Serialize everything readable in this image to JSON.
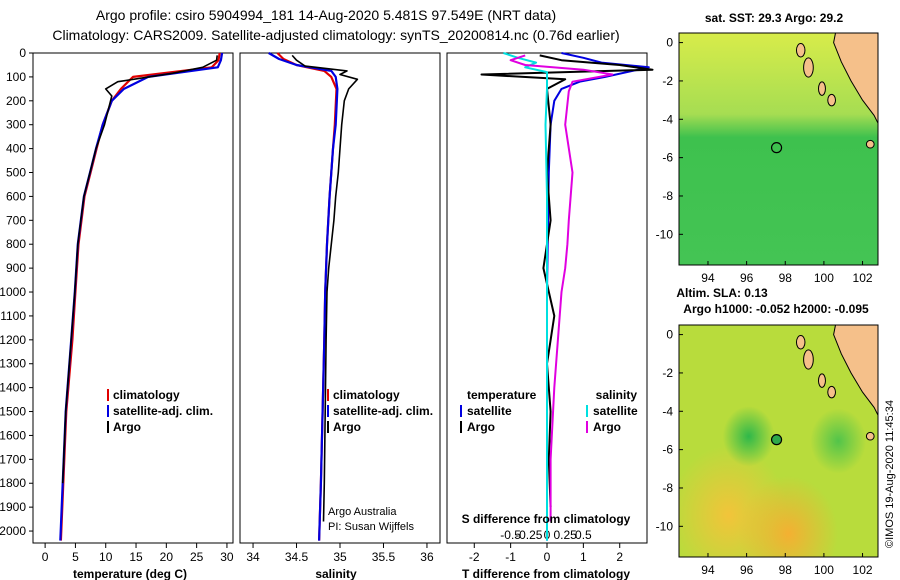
{
  "titles": {
    "line1": "Argo profile: csiro 5904994_181 14-Aug-2020 5.481S 97.549E (NRT data)",
    "line2": "Climatology: CARS2009. Satellite-adjusted climatology: synTS_20200814.nc (0.76d earlier)"
  },
  "colors": {
    "climatology": "#e00000",
    "satellite_adj": "#0000e0",
    "argo": "#000000",
    "satellite_diff_t": "#0000e0",
    "satellite_diff_s": "#00e0e0",
    "argo_diff_s": "#e000e0",
    "land": "#f5c08a"
  },
  "depth_ticks": [
    "0",
    "100",
    "200",
    "300",
    "400",
    "500",
    "600",
    "700",
    "800",
    "900",
    "1000",
    "1100",
    "1200",
    "1300",
    "1400",
    "1500",
    "1600",
    "1700",
    "1800",
    "1900",
    "2000"
  ],
  "chart_data": [
    {
      "type": "line",
      "name": "temperature-profile",
      "xlabel": "temperature (deg C)",
      "xlim": [
        -2,
        31
      ],
      "ylim": [
        0,
        2050
      ],
      "x_ticks": [
        "0",
        "5",
        "10",
        "15",
        "20",
        "25",
        "30"
      ],
      "x_tick_values": [
        0,
        5,
        10,
        15,
        20,
        25,
        30
      ],
      "legend": [
        {
          "label": "climatology",
          "color_key": "climatology"
        },
        {
          "label": "satellite-adj. clim.",
          "color_key": "satellite_adj"
        },
        {
          "label": "Argo",
          "color_key": "argo"
        }
      ],
      "series": [
        {
          "name": "climatology",
          "color_key": "climatology",
          "x": [
            28.8,
            28.6,
            27.5,
            14.5,
            12.5,
            11,
            9.5,
            8.5,
            7.5,
            6.5,
            5.5,
            5,
            4.5,
            3.5,
            3,
            2.6
          ],
          "y": [
            0,
            30,
            60,
            100,
            150,
            200,
            300,
            400,
            500,
            600,
            800,
            1000,
            1200,
            1500,
            1800,
            2040
          ]
        },
        {
          "name": "satellite-adj. clim.",
          "color_key": "satellite_adj",
          "x": [
            29.2,
            29,
            28.5,
            17,
            13,
            11,
            9.5,
            8.4,
            7.4,
            6.4,
            5.4,
            4.9,
            4.3,
            3.4,
            2.9,
            2.5
          ],
          "y": [
            0,
            30,
            60,
            100,
            150,
            200,
            300,
            400,
            500,
            600,
            800,
            1000,
            1200,
            1500,
            1800,
            2040
          ]
        },
        {
          "name": "Argo",
          "color_key": "argo",
          "x": [
            28.4,
            28.3,
            26,
            21,
            12,
            10,
            11,
            9.8,
            8.4,
            7.4,
            6.4,
            5.4,
            4.9,
            4.3,
            3.4,
            2.9
          ],
          "y": [
            10,
            30,
            60,
            85,
            120,
            150,
            180,
            300,
            400,
            500,
            600,
            800,
            1000,
            1200,
            1500,
            1800
          ]
        }
      ]
    },
    {
      "type": "line",
      "name": "salinity-profile",
      "xlabel": "salinity",
      "xlim": [
        33.85,
        36.15
      ],
      "ylim": [
        0,
        2050
      ],
      "x_ticks": [
        "34",
        "34.5",
        "35",
        "35.5",
        "36"
      ],
      "x_tick_values": [
        34,
        34.5,
        35,
        35.5,
        36
      ],
      "legend": [
        {
          "label": "climatology",
          "color_key": "climatology"
        },
        {
          "label": "satellite-adj. clim.",
          "color_key": "satellite_adj"
        },
        {
          "label": "Argo",
          "color_key": "argo"
        }
      ],
      "notes": [
        "Argo Australia",
        "PI: Susan Wijffels"
      ],
      "series": [
        {
          "name": "climatology",
          "color_key": "climatology",
          "x": [
            34.28,
            34.35,
            34.5,
            34.82,
            34.9,
            34.96,
            34.94,
            34.92,
            34.9,
            34.88,
            34.85,
            34.83,
            34.82,
            34.8,
            34.78,
            34.76
          ],
          "y": [
            0,
            25,
            50,
            75,
            100,
            150,
            300,
            400,
            500,
            600,
            800,
            1000,
            1200,
            1500,
            1800,
            2040
          ]
        },
        {
          "name": "satellite-adj. clim.",
          "color_key": "satellite_adj",
          "x": [
            34.18,
            34.3,
            34.5,
            34.9,
            34.95,
            34.97,
            34.95,
            34.92,
            34.9,
            34.88,
            34.85,
            34.83,
            34.82,
            34.8,
            34.78,
            34.76
          ],
          "y": [
            0,
            25,
            50,
            75,
            100,
            150,
            300,
            400,
            500,
            600,
            800,
            1000,
            1200,
            1500,
            1800,
            2040
          ]
        },
        {
          "name": "Argo",
          "color_key": "argo",
          "x": [
            34.45,
            34.5,
            34.6,
            35.08,
            35.0,
            35.2,
            35.1,
            35.05,
            35.02,
            35.0,
            34.98,
            34.95,
            34.93,
            34.9,
            34.87,
            34.85,
            34.84,
            34.83,
            34.82,
            34.81
          ],
          "y": [
            10,
            30,
            55,
            75,
            90,
            110,
            150,
            200,
            300,
            400,
            500,
            600,
            700,
            800,
            900,
            1000,
            1200,
            1500,
            1800,
            1960
          ]
        }
      ]
    },
    {
      "type": "line",
      "name": "difference-profile",
      "xlabel": "T difference from climatology",
      "secondary_label": "S difference from climatology",
      "xlim": [
        -2.75,
        2.75
      ],
      "ylim": [
        0,
        2050
      ],
      "x_ticks": [
        "-2",
        "-1",
        "0",
        "1",
        "2"
      ],
      "x_tick_values": [
        -2,
        -1,
        0,
        1,
        2
      ],
      "s_ticks": [
        "-0.5",
        "-0.25",
        "0",
        "0.25",
        "0.5"
      ],
      "s_tick_values": [
        -0.5,
        -0.25,
        0,
        0.25,
        0.5
      ],
      "legend_headers": {
        "temperature": "temperature",
        "salinity": "salinity"
      },
      "legend_left": [
        {
          "label": "satellite",
          "color_key": "satellite_diff_t"
        },
        {
          "label": "Argo",
          "color_key": "argo"
        }
      ],
      "legend_right": [
        {
          "label": "satellite",
          "color_key": "satellite_diff_s"
        },
        {
          "label": "Argo",
          "color_key": "argo_diff_s"
        }
      ],
      "series": [
        {
          "name": "T satellite",
          "color_key": "satellite_diff_t",
          "x": [
            0.4,
            1.0,
            1.5,
            2.8,
            1.6,
            0.9,
            0.4,
            0.2,
            0.1,
            0.05,
            0.02,
            0.0,
            0.0,
            0.0,
            0.0
          ],
          "y": [
            0,
            20,
            40,
            60,
            100,
            120,
            150,
            200,
            300,
            500,
            800,
            1000,
            1400,
            1800,
            2040
          ]
        },
        {
          "name": "T Argo",
          "color_key": "argo",
          "x": [
            -0.2,
            0.4,
            2.0,
            2.9,
            -1.8,
            0.5,
            0.0,
            0.1,
            0.0,
            0.1,
            -0.1,
            0.2,
            0.0,
            0.1,
            0.05,
            0.1
          ],
          "y": [
            10,
            30,
            50,
            70,
            90,
            110,
            150,
            300,
            500,
            700,
            900,
            1100,
            1300,
            1500,
            1700,
            1900
          ]
        },
        {
          "name": "S satellite",
          "color_key": "satellite_diff_s",
          "x": [
            -0.6,
            -0.4,
            -0.15,
            -0.3,
            0.0,
            0.0,
            -0.02,
            0.0,
            0.0,
            0.0
          ],
          "y": [
            0,
            20,
            40,
            60,
            80,
            150,
            300,
            600,
            1200,
            2040
          ]
        },
        {
          "name": "S Argo",
          "color_key": "argo_diff_s",
          "x": [
            -0.3,
            -0.5,
            -0.3,
            0.5,
            0.9,
            0.35,
            0.3,
            0.25,
            0.35,
            0.3,
            0.28,
            0.25,
            0.2,
            0.15,
            0.1,
            0.05,
            0.05
          ],
          "y": [
            10,
            30,
            50,
            70,
            90,
            120,
            160,
            300,
            500,
            700,
            800,
            900,
            1000,
            1200,
            1400,
            1700,
            1960
          ]
        }
      ]
    },
    {
      "type": "heatmap",
      "name": "sst-map",
      "title": "sat. SST: 29.3 Argo: 29.2",
      "xlim": [
        92.5,
        102.8
      ],
      "ylim": [
        -11.6,
        0.5
      ],
      "x_ticks": [
        "94",
        "96",
        "98",
        "100",
        "102"
      ],
      "x_tick_values": [
        94,
        96,
        98,
        100,
        102
      ],
      "y_ticks": [
        "0",
        "-2",
        "-4",
        "-6",
        "-8",
        "-10"
      ],
      "y_tick_values": [
        0,
        -2,
        -4,
        -6,
        -8,
        -10
      ],
      "marker": {
        "lon": 97.55,
        "lat": -5.48
      }
    },
    {
      "type": "heatmap",
      "name": "sla-map",
      "title": "Altim. SLA: 0.13",
      "subtitle": "Argo h1000: -0.052 h2000: -0.095",
      "xlim": [
        92.5,
        102.8
      ],
      "ylim": [
        -11.6,
        0.5
      ],
      "x_ticks": [
        "94",
        "96",
        "98",
        "100",
        "102"
      ],
      "x_tick_values": [
        94,
        96,
        98,
        100,
        102
      ],
      "y_ticks": [
        "0",
        "-2",
        "-4",
        "-6",
        "-8",
        "-10"
      ],
      "y_tick_values": [
        0,
        -2,
        -4,
        -6,
        -8,
        -10
      ],
      "marker": {
        "lon": 97.55,
        "lat": -5.48
      }
    }
  ],
  "credit": "©IMOS 19-Aug-2020 11:45:34"
}
